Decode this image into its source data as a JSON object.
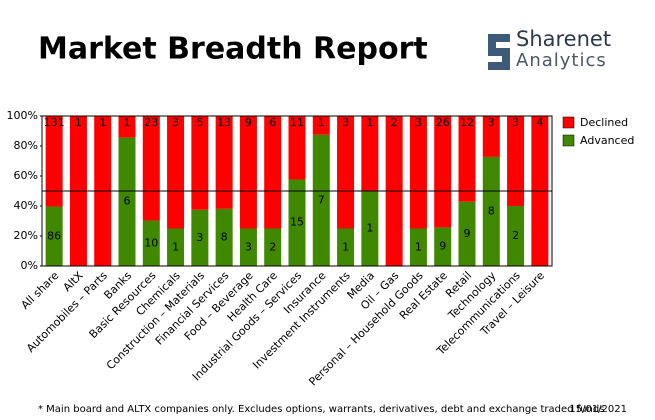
{
  "chart_data": {
    "type": "bar",
    "stacked": "percent",
    "title": "Market Breadth Report",
    "brand": [
      "Sharenet",
      "Analytics"
    ],
    "footnote": "* Main board and ALTX companies only. Excludes options, warrants, derivatives, debt and exchange traded funds",
    "date": "15/01/2021",
    "categories": [
      "All share",
      "AltX",
      "Automobiles – Parts",
      "Banks",
      "Basic Resources",
      "Chemicals",
      "Construction – Materials",
      "Financial Services",
      "Food – Beverage",
      "Health Care",
      "Industrial Goods – Services",
      "Insurance",
      "Investment Instruments",
      "Media",
      "Oil – Gas",
      "Personal – Household Goods",
      "Real Estate",
      "Retail",
      "Technology",
      "Telecommunications",
      "Travel – Leisure"
    ],
    "series": [
      {
        "name": "Advanced",
        "color": "#3f8800",
        "values": [
          86,
          0,
          0,
          6,
          10,
          1,
          3,
          8,
          3,
          2,
          15,
          7,
          1,
          1,
          0,
          1,
          9,
          9,
          8,
          2,
          0
        ]
      },
      {
        "name": "Declined",
        "color": "#ff0000",
        "values": [
          131,
          1,
          1,
          1,
          23,
          3,
          5,
          13,
          9,
          6,
          11,
          1,
          3,
          1,
          2,
          3,
          26,
          12,
          3,
          3,
          4
        ]
      }
    ],
    "ylim": [
      0,
      100
    ],
    "yticks": [
      {
        "value": 0,
        "label": "0%"
      },
      {
        "value": 20,
        "label": "20%"
      },
      {
        "value": 40,
        "label": "40%"
      },
      {
        "value": 60,
        "label": "60%"
      },
      {
        "value": 80,
        "label": "80%"
      },
      {
        "value": 100,
        "label": "100%"
      }
    ],
    "hlines": [
      50
    ],
    "legend": "right"
  }
}
